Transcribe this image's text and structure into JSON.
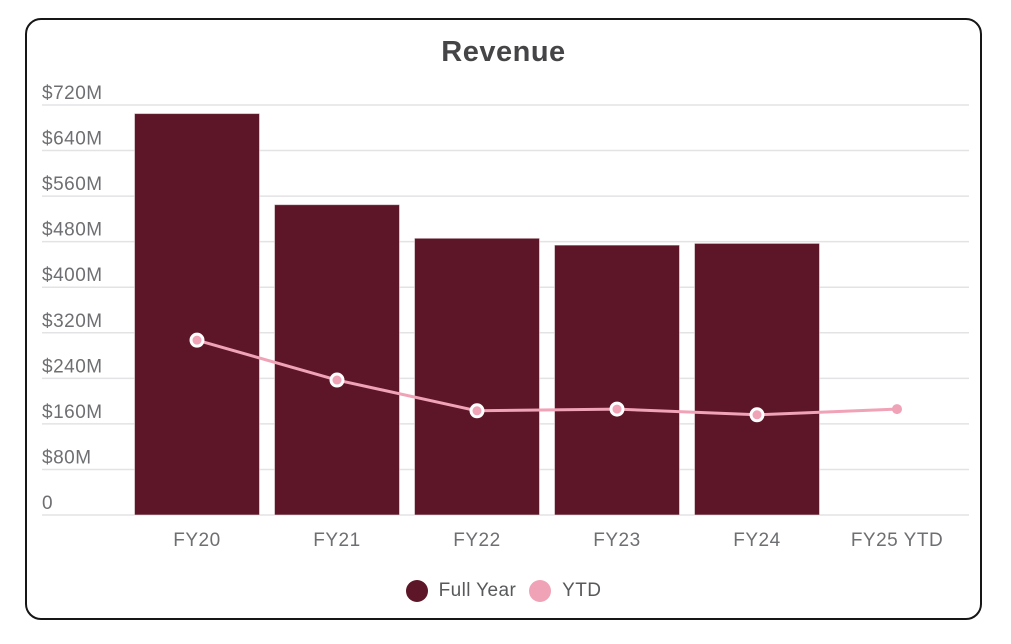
{
  "chart_data": {
    "type": "bar",
    "combo": "bar+line",
    "title": "Revenue",
    "categories": [
      "FY20",
      "FY21",
      "FY22",
      "FY23",
      "FY24",
      "FY25 YTD"
    ],
    "series": [
      {
        "name": "Full Year",
        "type": "bar",
        "color": "#5C1627",
        "values": [
          705,
          545,
          486,
          474,
          477,
          null
        ]
      },
      {
        "name": "YTD",
        "type": "line",
        "color": "#F0A2B7",
        "values": [
          307,
          237,
          183,
          186,
          176,
          186
        ],
        "ring_markers": [
          true,
          true,
          true,
          true,
          true,
          false
        ]
      }
    ],
    "xlabel": "",
    "ylabel": "",
    "ylim": [
      0,
      720
    ],
    "y_ticks": [
      {
        "value": 720,
        "label": "$720M"
      },
      {
        "value": 640,
        "label": "$640M"
      },
      {
        "value": 560,
        "label": "$560M"
      },
      {
        "value": 480,
        "label": "$480M"
      },
      {
        "value": 400,
        "label": "$400M"
      },
      {
        "value": 320,
        "label": "$320M"
      },
      {
        "value": 240,
        "label": "$240M"
      },
      {
        "value": 160,
        "label": "$160M"
      },
      {
        "value": 80,
        "label": "$80M"
      },
      {
        "value": 0,
        "label": "0"
      }
    ],
    "grid": true,
    "grid_color": "#E3E3E5",
    "axis_text_color": "#6E6F72",
    "legend_position": "bottom"
  },
  "legend": {
    "full_year_label": "Full Year",
    "ytd_label": "YTD"
  }
}
